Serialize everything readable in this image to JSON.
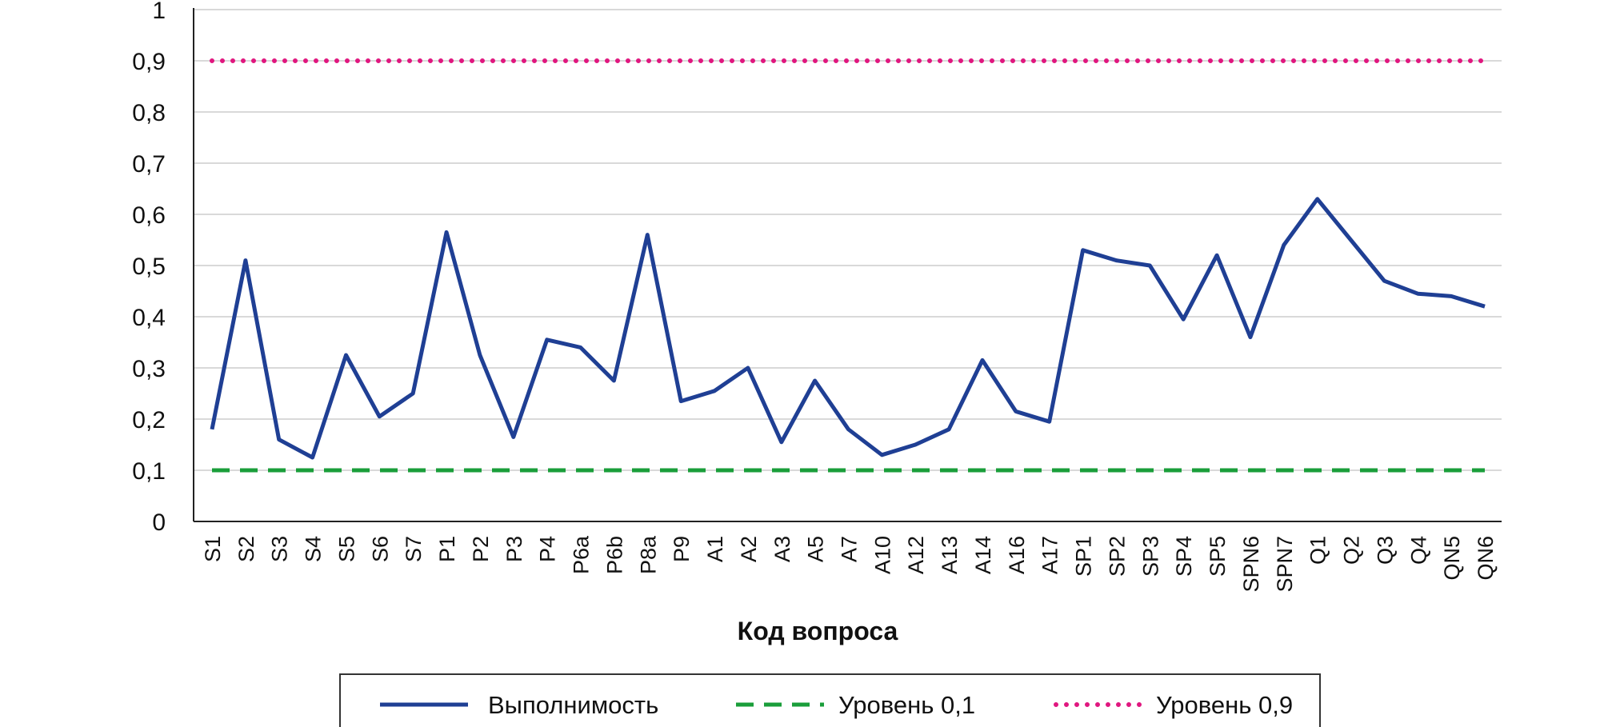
{
  "chart_data": {
    "type": "line",
    "xlabel": "Код вопроса",
    "ylabel": "",
    "ylim": [
      0,
      1
    ],
    "y_ticks": [
      "0",
      "0,1",
      "0,2",
      "0,3",
      "0,4",
      "0,5",
      "0,6",
      "0,7",
      "0,8",
      "0,9",
      "1"
    ],
    "categories": [
      "S1",
      "S2",
      "S3",
      "S4",
      "S5",
      "S6",
      "S7",
      "P1",
      "P2",
      "P3",
      "P4",
      "P6a",
      "P6b",
      "P8a",
      "P9",
      "A1",
      "A2",
      "A3",
      "A5",
      "A7",
      "A10",
      "A12",
      "A13",
      "A14",
      "A16",
      "A17",
      "SP1",
      "SP2",
      "SP3",
      "SP4",
      "SP5",
      "SPN6",
      "SPN7",
      "Q1",
      "Q2",
      "Q3",
      "Q4",
      "QN5",
      "QN6"
    ],
    "series": [
      {
        "name": "Выполнимость",
        "color": "#1f3f94",
        "style": "solid",
        "values": [
          0.18,
          0.51,
          0.16,
          0.125,
          0.325,
          0.205,
          0.25,
          0.565,
          0.325,
          0.165,
          0.355,
          0.34,
          0.275,
          0.56,
          0.235,
          0.255,
          0.3,
          0.155,
          0.275,
          0.18,
          0.13,
          0.15,
          0.18,
          0.315,
          0.215,
          0.195,
          0.53,
          0.51,
          0.5,
          0.395,
          0.52,
          0.36,
          0.54,
          0.63,
          0.55,
          0.47,
          0.445,
          0.44,
          0.42
        ]
      },
      {
        "name": "Уровень 0,1",
        "color": "#1a9e3a",
        "style": "dashed",
        "values": [
          0.1,
          0.1,
          0.1,
          0.1,
          0.1,
          0.1,
          0.1,
          0.1,
          0.1,
          0.1,
          0.1,
          0.1,
          0.1,
          0.1,
          0.1,
          0.1,
          0.1,
          0.1,
          0.1,
          0.1,
          0.1,
          0.1,
          0.1,
          0.1,
          0.1,
          0.1,
          0.1,
          0.1,
          0.1,
          0.1,
          0.1,
          0.1,
          0.1,
          0.1,
          0.1,
          0.1,
          0.1,
          0.1,
          0.1
        ]
      },
      {
        "name": "Уровень 0,9",
        "color": "#e0177f",
        "style": "dotted",
        "values": [
          0.9,
          0.9,
          0.9,
          0.9,
          0.9,
          0.9,
          0.9,
          0.9,
          0.9,
          0.9,
          0.9,
          0.9,
          0.9,
          0.9,
          0.9,
          0.9,
          0.9,
          0.9,
          0.9,
          0.9,
          0.9,
          0.9,
          0.9,
          0.9,
          0.9,
          0.9,
          0.9,
          0.9,
          0.9,
          0.9,
          0.9,
          0.9,
          0.9,
          0.9,
          0.9,
          0.9,
          0.9,
          0.9,
          0.9
        ]
      }
    ],
    "grid": true,
    "legend_position": "bottom"
  }
}
